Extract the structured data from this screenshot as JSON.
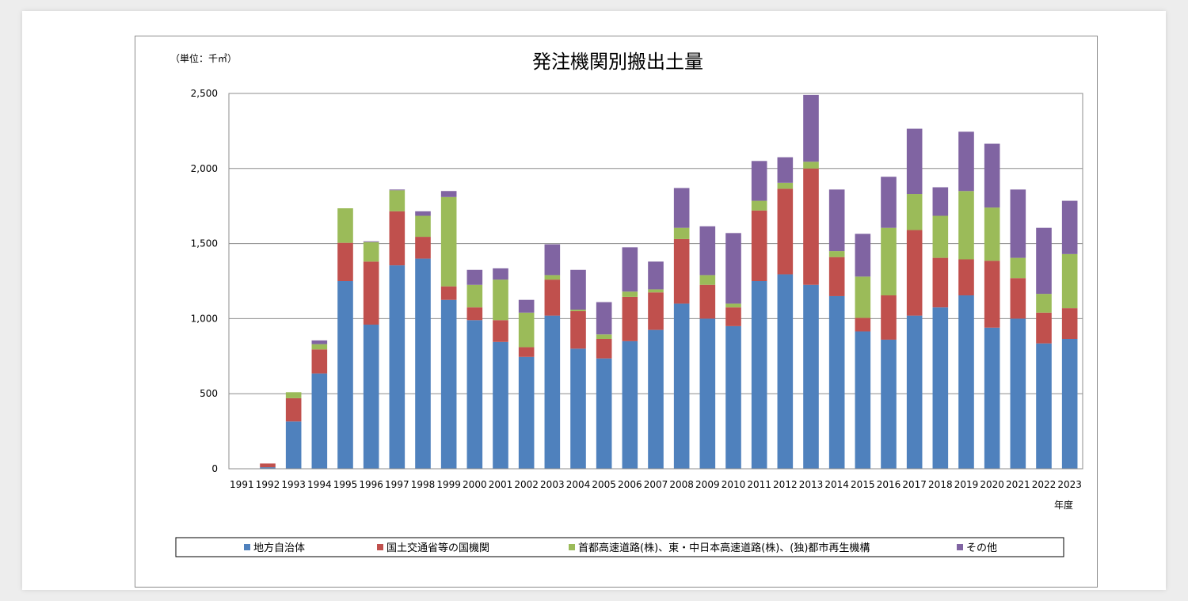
{
  "chart_data": {
    "type": "bar",
    "stacked": true,
    "title": "発注機関別搬出土量",
    "unit_label": "（単位：千㎥）",
    "xlabel": "年度",
    "ylabel": "",
    "ylim": [
      0,
      2500
    ],
    "yticks": [
      0,
      500,
      1000,
      1500,
      2000,
      2500
    ],
    "ytick_labels": [
      "0",
      "500",
      "1,000",
      "1,500",
      "2,000",
      "2,500"
    ],
    "grid": true,
    "legend_position": "bottom",
    "categories": [
      "1991",
      "1992",
      "1993",
      "1994",
      "1995",
      "1996",
      "1997",
      "1998",
      "1999",
      "2000",
      "2001",
      "2002",
      "2003",
      "2004",
      "2005",
      "2006",
      "2007",
      "2008",
      "2009",
      "2010",
      "2011",
      "2012",
      "2013",
      "2014",
      "2015",
      "2016",
      "2017",
      "2018",
      "2019",
      "2020",
      "2021",
      "2022",
      "2023"
    ],
    "series": [
      {
        "name": "地方自治体",
        "color": "#4f81bd",
        "values": [
          0,
          10,
          315,
          635,
          1250,
          960,
          1355,
          1400,
          1125,
          990,
          845,
          745,
          1020,
          800,
          735,
          850,
          925,
          1100,
          1000,
          950,
          1250,
          1295,
          1225,
          1150,
          915,
          860,
          1020,
          1075,
          1155,
          940,
          1000,
          835,
          865
        ]
      },
      {
        "name": "国土交通省等の国機関",
        "color": "#c0504d",
        "values": [
          0,
          25,
          155,
          160,
          255,
          420,
          360,
          145,
          90,
          85,
          145,
          65,
          240,
          250,
          130,
          295,
          250,
          430,
          225,
          125,
          470,
          570,
          775,
          260,
          90,
          295,
          570,
          330,
          240,
          445,
          270,
          205,
          205
        ]
      },
      {
        "name": "首都高速道路(株)、東・中日本高速道路(株)、(独)都市再生機構",
        "color": "#9bbb59",
        "values": [
          0,
          0,
          40,
          35,
          230,
          130,
          140,
          140,
          595,
          150,
          270,
          230,
          30,
          10,
          30,
          35,
          20,
          75,
          65,
          25,
          65,
          40,
          45,
          40,
          275,
          450,
          240,
          280,
          455,
          355,
          135,
          125,
          360
        ]
      },
      {
        "name": "その他",
        "color": "#8064a2",
        "values": [
          0,
          0,
          0,
          25,
          0,
          5,
          5,
          30,
          40,
          100,
          75,
          85,
          205,
          265,
          215,
          295,
          185,
          265,
          325,
          470,
          265,
          170,
          445,
          410,
          285,
          340,
          435,
          190,
          395,
          425,
          455,
          440,
          355
        ]
      }
    ]
  }
}
